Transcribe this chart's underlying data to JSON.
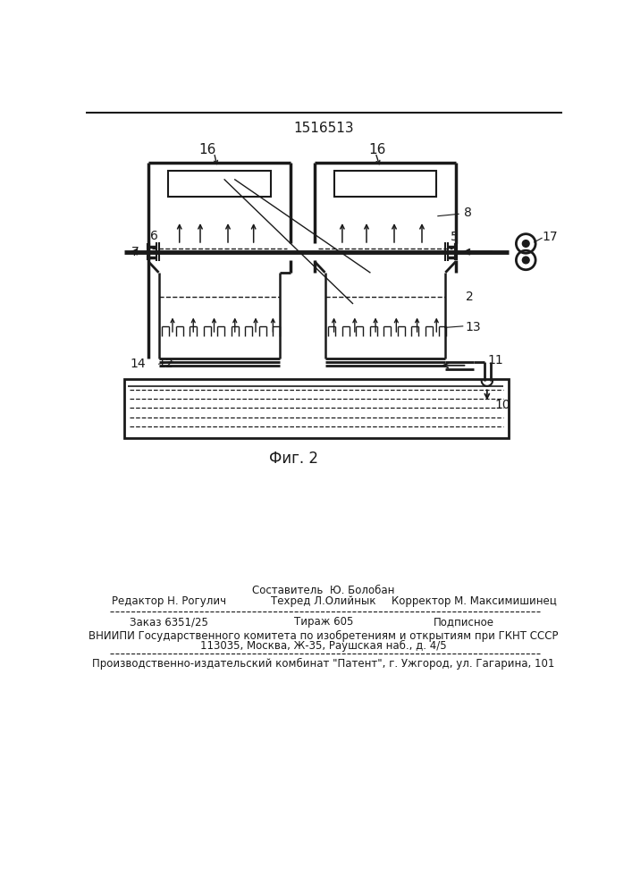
{
  "patent_number": "1516513",
  "figure_label": "Фиг. 2",
  "bg_color": "#ffffff",
  "line_color": "#1a1a1a",
  "text_color": "#1a1a1a",
  "footer_line1_left": "Редактор Н. Рогулич",
  "footer_line1_center": "Составитель  Ю. Болобан",
  "footer_line2_center": "Техред Л.Олийнык",
  "footer_line2_right": "Корректор М. Максимишинец",
  "footer_order": "Заказ 6351/25",
  "footer_tirazh": "Тираж 605",
  "footer_podpisnoe": "Подписное",
  "footer_vnipi": "ВНИИПИ Государственного комитета по изобретениям и открытиям при ГКНТ СССР",
  "footer_address": "113035, Москва, Ж-35, Раушская наб., д. 4/5",
  "footer_factory": "Производственно-издательский комбинат \"Патент\", г. Ужгород, ул. Гагарина, 101"
}
